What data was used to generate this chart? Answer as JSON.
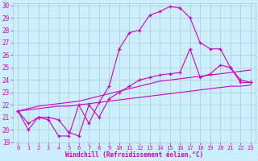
{
  "xlabel": "Windchill (Refroidissement éolien,°C)",
  "bg_color": "#cceeff",
  "grid_color": "#aacccc",
  "line_color": "#cc00cc",
  "xlim": [
    -0.5,
    23.5
  ],
  "ylim": [
    19,
    30.2
  ],
  "yticks": [
    19,
    20,
    21,
    22,
    23,
    24,
    25,
    26,
    27,
    28,
    29,
    30
  ],
  "xticks": [
    0,
    1,
    2,
    3,
    4,
    5,
    6,
    7,
    8,
    9,
    10,
    11,
    12,
    13,
    14,
    15,
    16,
    17,
    18,
    19,
    20,
    21,
    22,
    23
  ],
  "series": [
    {
      "x": [
        0,
        1,
        2,
        3,
        4,
        5,
        6,
        7,
        8,
        9,
        10,
        11,
        12,
        13,
        14,
        15,
        16,
        17,
        18,
        19,
        20,
        21,
        22,
        23
      ],
      "y": [
        21.5,
        20.0,
        21.0,
        20.8,
        19.5,
        19.5,
        22.0,
        20.5,
        22.2,
        23.5,
        26.5,
        27.8,
        28.0,
        29.2,
        29.5,
        29.9,
        29.8,
        29.0,
        27.0,
        26.5,
        26.5,
        25.0,
        23.8,
        23.8
      ],
      "marker": "+"
    },
    {
      "x": [
        0,
        1,
        2,
        3,
        4,
        5,
        6,
        7,
        8,
        9,
        10,
        11,
        12,
        13,
        14,
        15,
        16,
        17,
        18,
        19,
        20,
        21,
        22,
        23
      ],
      "y": [
        21.5,
        20.5,
        21.0,
        21.0,
        20.8,
        19.8,
        19.5,
        22.0,
        21.0,
        22.5,
        23.0,
        23.5,
        24.0,
        24.2,
        24.4,
        24.5,
        24.6,
        26.5,
        24.2,
        24.5,
        25.2,
        25.0,
        24.0,
        23.8
      ],
      "marker": "+"
    },
    {
      "x": [
        0,
        1,
        2,
        3,
        4,
        5,
        6,
        7,
        8,
        9,
        10,
        11,
        12,
        13,
        14,
        15,
        16,
        17,
        18,
        19,
        20,
        21,
        22,
        23
      ],
      "y": [
        21.5,
        21.6,
        21.7,
        21.8,
        21.9,
        21.9,
        22.0,
        22.1,
        22.2,
        22.3,
        22.4,
        22.5,
        22.6,
        22.7,
        22.8,
        22.9,
        23.0,
        23.1,
        23.2,
        23.3,
        23.4,
        23.5,
        23.5,
        23.6
      ],
      "marker": null
    },
    {
      "x": [
        0,
        1,
        2,
        3,
        4,
        5,
        6,
        7,
        8,
        9,
        10,
        11,
        12,
        13,
        14,
        15,
        16,
        17,
        18,
        19,
        20,
        21,
        22,
        23
      ],
      "y": [
        21.5,
        21.7,
        21.9,
        22.0,
        22.1,
        22.2,
        22.3,
        22.5,
        22.7,
        22.9,
        23.1,
        23.3,
        23.5,
        23.7,
        23.9,
        24.0,
        24.1,
        24.2,
        24.3,
        24.4,
        24.5,
        24.6,
        24.7,
        24.8
      ],
      "marker": null
    }
  ]
}
